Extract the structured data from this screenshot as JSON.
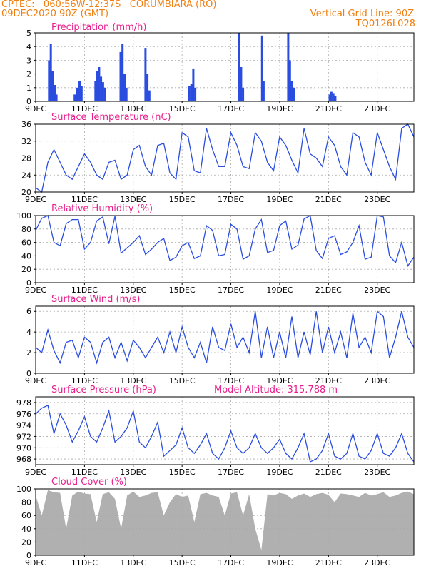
{
  "header": {
    "line1": "CPTEC:   060:56W-12:37S   CORUMBIARA (RO)",
    "line2": "09DEC2020 90Z (GMT)",
    "right1": "Vertical Grid Line: 90Z",
    "right2": "TQ0126L028",
    "color": "#f07f12"
  },
  "colors": {
    "title": "#e81e8c",
    "line": "#2a4de0",
    "bar": "#2a4de0",
    "cloud": "#b0b0b0",
    "grid": "#aaaaaa"
  },
  "x_axis": {
    "range": [
      0,
      15.5
    ],
    "tick_days": [
      0,
      2,
      4,
      6,
      8,
      10,
      12,
      14
    ],
    "tick_labels": [
      "9DEC",
      "11DEC",
      "13DEC",
      "15DEC",
      "17DEC",
      "19DEC",
      "21DEC",
      "23DEC"
    ]
  },
  "chart_data": [
    {
      "id": "precip",
      "type": "bar",
      "title": "Precipitation (mm/h)",
      "ylim": [
        0,
        5
      ],
      "yticks": [
        0,
        1,
        2,
        3,
        4,
        5
      ],
      "x": [
        0.55,
        0.62,
        0.7,
        0.78,
        0.85,
        1.6,
        1.7,
        1.8,
        1.88,
        2.45,
        2.52,
        2.6,
        2.68,
        2.76,
        2.84,
        3.48,
        3.56,
        3.64,
        3.72,
        4.5,
        4.58,
        4.66,
        6.3,
        6.38,
        6.46,
        6.54,
        8.35,
        8.42,
        8.5,
        9.28,
        9.34,
        10.35,
        10.42,
        10.5,
        10.58,
        12.05,
        12.12,
        12.2,
        12.28
      ],
      "values": [
        3.0,
        4.2,
        2.2,
        1.2,
        0.5,
        0.5,
        1.0,
        1.5,
        1.1,
        1.5,
        2.2,
        2.5,
        1.8,
        1.4,
        1.0,
        3.6,
        4.2,
        2.0,
        1.0,
        3.9,
        2.0,
        0.8,
        1.1,
        1.3,
        2.4,
        1.0,
        5.0,
        2.5,
        1.0,
        4.8,
        1.5,
        5.0,
        3.0,
        1.5,
        1.0,
        0.5,
        0.7,
        0.6,
        0.4
      ]
    },
    {
      "id": "temp",
      "type": "line",
      "title": "Surface Temperature (nC)",
      "ylim": [
        20,
        36
      ],
      "yticks": [
        20,
        24,
        28,
        32,
        36
      ],
      "x": [
        0,
        0.25,
        0.5,
        0.75,
        1,
        1.25,
        1.5,
        1.75,
        2,
        2.25,
        2.5,
        2.75,
        3,
        3.25,
        3.5,
        3.75,
        4,
        4.25,
        4.5,
        4.75,
        5,
        5.25,
        5.5,
        5.75,
        6,
        6.25,
        6.5,
        6.75,
        7,
        7.25,
        7.5,
        7.75,
        8,
        8.25,
        8.5,
        8.75,
        9,
        9.25,
        9.5,
        9.75,
        10,
        10.25,
        10.5,
        10.75,
        11,
        11.25,
        11.5,
        11.75,
        12,
        12.25,
        12.5,
        12.75,
        13,
        13.25,
        13.5,
        13.75,
        14,
        14.25,
        14.5,
        14.75,
        15,
        15.25,
        15.5
      ],
      "values": [
        21,
        20,
        27,
        30,
        27,
        24,
        23,
        26,
        29,
        27,
        24,
        23,
        27,
        27.5,
        23,
        24,
        30,
        31,
        26,
        24,
        31,
        31.5,
        24.5,
        23,
        34,
        33,
        25,
        24.5,
        35,
        30,
        26,
        26,
        34,
        31,
        26,
        25.5,
        34,
        32,
        27,
        25,
        33,
        31,
        27.5,
        24.5,
        35,
        29,
        28,
        26,
        33,
        31,
        26,
        24,
        34,
        33,
        27,
        24,
        34,
        30,
        26,
        23,
        35,
        36,
        33
      ]
    },
    {
      "id": "rh",
      "type": "line",
      "title": "Relative Humidity (%)",
      "ylim": [
        0,
        100
      ],
      "yticks": [
        0,
        20,
        40,
        60,
        80,
        100
      ],
      "x": [
        0,
        0.25,
        0.5,
        0.75,
        1,
        1.25,
        1.5,
        1.75,
        2,
        2.25,
        2.5,
        2.75,
        3,
        3.25,
        3.5,
        3.75,
        4,
        4.25,
        4.5,
        4.75,
        5,
        5.25,
        5.5,
        5.75,
        6,
        6.25,
        6.5,
        6.75,
        7,
        7.25,
        7.5,
        7.75,
        8,
        8.25,
        8.5,
        8.75,
        9,
        9.25,
        9.5,
        9.75,
        10,
        10.25,
        10.5,
        10.75,
        11,
        11.25,
        11.5,
        11.75,
        12,
        12.25,
        12.5,
        12.75,
        13,
        13.25,
        13.5,
        13.75,
        14,
        14.25,
        14.5,
        14.75,
        15,
        15.25,
        15.5
      ],
      "values": [
        78,
        96,
        100,
        60,
        55,
        88,
        94,
        94,
        50,
        60,
        92,
        98,
        58,
        99,
        44,
        52,
        60,
        70,
        42,
        50,
        60,
        66,
        33,
        38,
        55,
        60,
        36,
        40,
        85,
        78,
        40,
        42,
        87,
        80,
        35,
        40,
        80,
        94,
        45,
        48,
        85,
        92,
        50,
        56,
        95,
        100,
        48,
        36,
        66,
        70,
        42,
        46,
        60,
        85,
        35,
        38,
        100,
        98,
        40,
        30,
        60,
        25,
        38
      ]
    },
    {
      "id": "wind",
      "type": "line",
      "title": "Surface Wind (m/s)",
      "ylim": [
        0,
        6.5
      ],
      "yticks": [
        0,
        2,
        4,
        6
      ],
      "x": [
        0,
        0.25,
        0.5,
        0.75,
        1,
        1.25,
        1.5,
        1.75,
        2,
        2.25,
        2.5,
        2.75,
        3,
        3.25,
        3.5,
        3.75,
        4,
        4.25,
        4.5,
        4.75,
        5,
        5.25,
        5.5,
        5.75,
        6,
        6.25,
        6.5,
        6.75,
        7,
        7.25,
        7.5,
        7.75,
        8,
        8.25,
        8.5,
        8.75,
        9,
        9.25,
        9.5,
        9.75,
        10,
        10.25,
        10.5,
        10.75,
        11,
        11.25,
        11.5,
        11.75,
        12,
        12.25,
        12.5,
        12.75,
        13,
        13.25,
        13.5,
        13.75,
        14,
        14.25,
        14.5,
        14.75,
        15,
        15.25,
        15.5
      ],
      "values": [
        2.5,
        2.0,
        4.2,
        2.2,
        1.0,
        3.0,
        3.2,
        1.5,
        3.5,
        3.0,
        1.0,
        3.0,
        3.5,
        1.5,
        3.0,
        1.2,
        3.2,
        2.5,
        1.5,
        2.5,
        3.5,
        2.0,
        4.0,
        2.0,
        4.5,
        2.5,
        1.5,
        3.0,
        1.0,
        4.5,
        2.5,
        2.2,
        4.8,
        2.5,
        3.5,
        2.0,
        6.0,
        1.5,
        4.5,
        1.5,
        4.0,
        1.5,
        5.5,
        1.5,
        4.0,
        1.8,
        6.0,
        2.0,
        4.5,
        2.0,
        4.0,
        1.5,
        5.8,
        2.5,
        3.5,
        2.0,
        6.0,
        5.5,
        1.5,
        3.5,
        6.0,
        3.5,
        2.5
      ]
    },
    {
      "id": "pres",
      "type": "line",
      "title": "Surface Pressure (hPa)",
      "annotation": "Model Altitude: 315.788 m",
      "ylim": [
        967,
        979
      ],
      "yticks": [
        968,
        970,
        972,
        974,
        976,
        978
      ],
      "x": [
        0,
        0.25,
        0.5,
        0.75,
        1,
        1.25,
        1.5,
        1.75,
        2,
        2.25,
        2.5,
        2.75,
        3,
        3.25,
        3.5,
        3.75,
        4,
        4.25,
        4.5,
        4.75,
        5,
        5.25,
        5.5,
        5.75,
        6,
        6.25,
        6.5,
        6.75,
        7,
        7.25,
        7.5,
        7.75,
        8,
        8.25,
        8.5,
        8.75,
        9,
        9.25,
        9.5,
        9.75,
        10,
        10.25,
        10.5,
        10.75,
        11,
        11.25,
        11.5,
        11.75,
        12,
        12.25,
        12.5,
        12.75,
        13,
        13.25,
        13.5,
        13.75,
        14,
        14.25,
        14.5,
        14.75,
        15,
        15.25,
        15.5
      ],
      "values": [
        976,
        977,
        977.5,
        972.5,
        976,
        974,
        971,
        973,
        975.5,
        972,
        971,
        973.5,
        976.5,
        971,
        972,
        973.5,
        976.5,
        971,
        970,
        972,
        974.5,
        968.5,
        969.5,
        970.5,
        973.5,
        970,
        969,
        970.5,
        972.5,
        969,
        968,
        970,
        973,
        970,
        969,
        970,
        972.5,
        970,
        969,
        970,
        971.5,
        969,
        968,
        970,
        972.5,
        967.5,
        968,
        969.5,
        972.5,
        968.5,
        968,
        969,
        972.5,
        968.5,
        968,
        969.5,
        972.5,
        969,
        968.5,
        970,
        972.5,
        969,
        967.5
      ]
    },
    {
      "id": "cloud",
      "type": "area",
      "title": "Cloud Cover (%)",
      "ylim": [
        0,
        100
      ],
      "yticks": [
        0,
        20,
        40,
        60,
        80,
        100
      ],
      "x": [
        0,
        0.25,
        0.5,
        0.75,
        1,
        1.25,
        1.5,
        1.75,
        2,
        2.25,
        2.5,
        2.75,
        3,
        3.25,
        3.5,
        3.75,
        4,
        4.25,
        4.5,
        4.75,
        5,
        5.25,
        5.5,
        5.75,
        6,
        6.25,
        6.5,
        6.75,
        7,
        7.25,
        7.5,
        7.75,
        8,
        8.25,
        8.5,
        8.75,
        9,
        9.25,
        9.5,
        9.75,
        10,
        10.25,
        10.5,
        10.75,
        11,
        11.25,
        11.5,
        11.75,
        12,
        12.25,
        12.5,
        12.75,
        13,
        13.25,
        13.5,
        13.75,
        14,
        14.25,
        14.5,
        14.75,
        15,
        15.25,
        15.5
      ],
      "values": [
        90,
        60,
        98,
        95,
        94,
        40,
        90,
        96,
        93,
        92,
        50,
        92,
        95,
        85,
        40,
        90,
        96,
        88,
        90,
        94,
        95,
        60,
        80,
        92,
        88,
        90,
        50,
        92,
        94,
        90,
        88,
        60,
        93,
        95,
        60,
        92,
        40,
        8,
        92,
        90,
        94,
        92,
        85,
        90,
        93,
        88,
        92,
        94,
        91,
        80,
        93,
        92,
        90,
        88,
        94,
        90,
        92,
        95,
        88,
        90,
        94,
        96,
        92
      ]
    }
  ]
}
